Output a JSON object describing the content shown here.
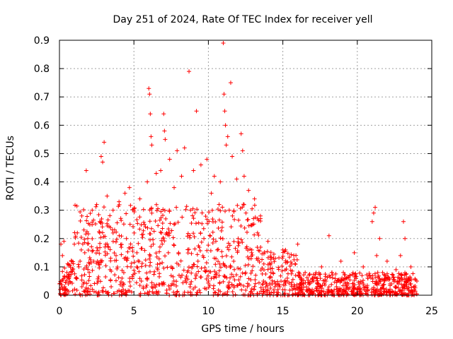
{
  "chart_data": {
    "type": "scatter",
    "title": "Day 251 of 2024, Rate Of TEC Index for receiver yell",
    "xlabel": "GPS time / hours",
    "ylabel": "ROTI / TECUs",
    "xlim": [
      0,
      25
    ],
    "ylim": [
      0,
      0.9
    ],
    "x_ticks": [
      0,
      5,
      10,
      15,
      20,
      25
    ],
    "y_ticks": [
      0,
      0.1,
      0.2,
      0.3,
      0.4,
      0.5,
      0.6,
      0.7,
      0.8,
      0.9
    ],
    "x_tick_labels": [
      "0",
      "5",
      "10",
      "15",
      "20",
      "25"
    ],
    "y_tick_labels": [
      "0",
      "0.1",
      "0.2",
      "0.3",
      "0.4",
      "0.5",
      "0.6",
      "0.7",
      "0.8",
      "0.9"
    ],
    "grid": true,
    "marker": "+",
    "series": [
      {
        "name": "ROTI",
        "color": "#ff0000",
        "points": [
          [
            0.05,
            0.02
          ],
          [
            0.1,
            0.18
          ],
          [
            0.15,
            0.05
          ],
          [
            0.2,
            0.14
          ],
          [
            0.3,
            0.19
          ],
          [
            0.35,
            0.03
          ],
          [
            0.5,
            0.08
          ],
          [
            0.6,
            0.04
          ],
          [
            0.8,
            0.12
          ],
          [
            1.0,
            0.18
          ],
          [
            1.1,
            0.06
          ],
          [
            1.2,
            0.22
          ],
          [
            1.3,
            0.1
          ],
          [
            1.5,
            0.28
          ],
          [
            1.6,
            0.04
          ],
          [
            1.7,
            0.15
          ],
          [
            1.8,
            0.44
          ],
          [
            1.9,
            0.2
          ],
          [
            2.0,
            0.08
          ],
          [
            2.2,
            0.3
          ],
          [
            2.3,
            0.12
          ],
          [
            2.5,
            0.32
          ],
          [
            2.6,
            0.05
          ],
          [
            2.7,
            0.22
          ],
          [
            2.8,
            0.49
          ],
          [
            2.9,
            0.47
          ],
          [
            3.0,
            0.54
          ],
          [
            3.1,
            0.18
          ],
          [
            3.2,
            0.35
          ],
          [
            3.4,
            0.09
          ],
          [
            3.6,
            0.3
          ],
          [
            3.8,
            0.14
          ],
          [
            4.0,
            0.33
          ],
          [
            4.2,
            0.06
          ],
          [
            4.4,
            0.36
          ],
          [
            4.5,
            0.2
          ],
          [
            4.7,
            0.38
          ],
          [
            4.8,
            0.1
          ],
          [
            5.0,
            0.3
          ],
          [
            5.2,
            0.15
          ],
          [
            5.4,
            0.34
          ],
          [
            5.5,
            0.05
          ],
          [
            5.7,
            0.25
          ],
          [
            5.9,
            0.4
          ],
          [
            6.0,
            0.73
          ],
          [
            6.05,
            0.71
          ],
          [
            6.1,
            0.64
          ],
          [
            6.15,
            0.56
          ],
          [
            6.2,
            0.53
          ],
          [
            6.3,
            0.18
          ],
          [
            6.5,
            0.43
          ],
          [
            6.6,
            0.09
          ],
          [
            6.8,
            0.44
          ],
          [
            7.0,
            0.64
          ],
          [
            7.05,
            0.58
          ],
          [
            7.1,
            0.55
          ],
          [
            7.2,
            0.22
          ],
          [
            7.4,
            0.48
          ],
          [
            7.5,
            0.1
          ],
          [
            7.7,
            0.38
          ],
          [
            7.9,
            0.51
          ],
          [
            8.0,
            0.15
          ],
          [
            8.2,
            0.42
          ],
          [
            8.4,
            0.52
          ],
          [
            8.5,
            0.06
          ],
          [
            8.7,
            0.79
          ],
          [
            8.8,
            0.3
          ],
          [
            9.0,
            0.44
          ],
          [
            9.2,
            0.65
          ],
          [
            9.3,
            0.12
          ],
          [
            9.5,
            0.46
          ],
          [
            9.7,
            0.2
          ],
          [
            9.9,
            0.48
          ],
          [
            10.0,
            0.05
          ],
          [
            10.2,
            0.36
          ],
          [
            10.4,
            0.42
          ],
          [
            10.6,
            0.16
          ],
          [
            10.8,
            0.4
          ],
          [
            11.0,
            0.89
          ],
          [
            11.05,
            0.71
          ],
          [
            11.1,
            0.65
          ],
          [
            11.15,
            0.6
          ],
          [
            11.2,
            0.53
          ],
          [
            11.3,
            0.56
          ],
          [
            11.4,
            0.3
          ],
          [
            11.5,
            0.75
          ],
          [
            11.6,
            0.49
          ],
          [
            11.7,
            0.12
          ],
          [
            11.9,
            0.41
          ],
          [
            12.0,
            0.2
          ],
          [
            12.2,
            0.57
          ],
          [
            12.3,
            0.51
          ],
          [
            12.4,
            0.42
          ],
          [
            12.5,
            0.08
          ],
          [
            12.7,
            0.37
          ],
          [
            12.9,
            0.15
          ],
          [
            13.1,
            0.34
          ],
          [
            13.3,
            0.22
          ],
          [
            13.5,
            0.28
          ],
          [
            13.7,
            0.05
          ],
          [
            14.0,
            0.19
          ],
          [
            14.2,
            0.08
          ],
          [
            14.5,
            0.13
          ],
          [
            14.8,
            0.03
          ],
          [
            15.0,
            0.16
          ],
          [
            15.3,
            0.06
          ],
          [
            15.6,
            0.11
          ],
          [
            16.0,
            0.18
          ],
          [
            16.2,
            0.04
          ],
          [
            16.5,
            0.08
          ],
          [
            16.8,
            0.02
          ],
          [
            17.0,
            0.06
          ],
          [
            17.3,
            0.03
          ],
          [
            17.6,
            0.1
          ],
          [
            17.9,
            0.05
          ],
          [
            18.1,
            0.21
          ],
          [
            18.3,
            0.08
          ],
          [
            18.6,
            0.03
          ],
          [
            18.9,
            0.12
          ],
          [
            19.2,
            0.04
          ],
          [
            19.5,
            0.07
          ],
          [
            19.8,
            0.15
          ],
          [
            20.1,
            0.03
          ],
          [
            20.4,
            0.1
          ],
          [
            20.7,
            0.06
          ],
          [
            21.0,
            0.26
          ],
          [
            21.1,
            0.29
          ],
          [
            21.2,
            0.31
          ],
          [
            21.3,
            0.14
          ],
          [
            21.5,
            0.2
          ],
          [
            21.7,
            0.08
          ],
          [
            22.0,
            0.12
          ],
          [
            22.3,
            0.04
          ],
          [
            22.6,
            0.09
          ],
          [
            22.9,
            0.14
          ],
          [
            23.1,
            0.26
          ],
          [
            23.2,
            0.2
          ],
          [
            23.4,
            0.06
          ],
          [
            23.6,
            0.1
          ],
          [
            23.8,
            0.03
          ],
          [
            24.0,
            0.05
          ]
        ]
      }
    ]
  }
}
